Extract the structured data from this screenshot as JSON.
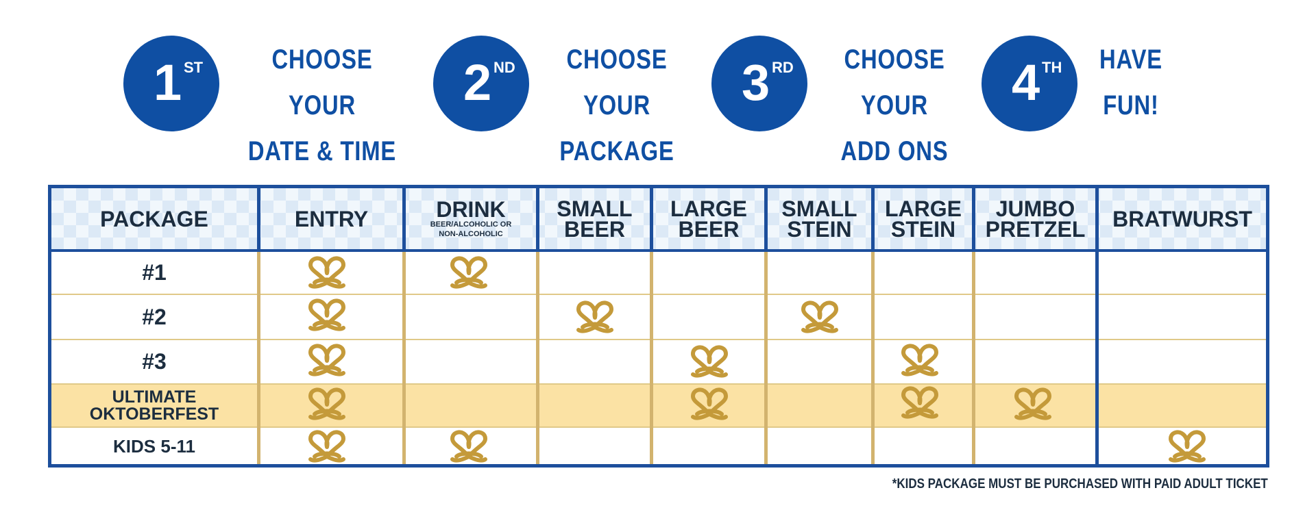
{
  "steps": [
    {
      "number": "1",
      "suffix": "ST",
      "line1": "CHOOSE YOUR",
      "line2": "DATE & TIME"
    },
    {
      "number": "2",
      "suffix": "ND",
      "line1": "CHOOSE YOUR",
      "line2": "PACKAGE"
    },
    {
      "number": "3",
      "suffix": "RD",
      "line1": "CHOOSE YOUR",
      "line2": "ADD ONS"
    },
    {
      "number": "4",
      "suffix": "TH",
      "line1": "HAVE",
      "line2": "FUN!"
    }
  ],
  "table": {
    "headers": {
      "package": "PACKAGE",
      "entry": "ENTRY",
      "drink": "DRINK",
      "drink_sub1": "BEER/ALCOHOLIC OR",
      "drink_sub2": "NON-ALCOHOLIC",
      "small_beer_1": "SMALL",
      "small_beer_2": "BEER",
      "large_beer_1": "LARGE",
      "large_beer_2": "BEER",
      "small_stein_1": "SMALL",
      "small_stein_2": "STEIN",
      "large_stein_1": "LARGE",
      "large_stein_2": "STEIN",
      "jumbo_pretzel_1": "JUMBO",
      "jumbo_pretzel_2": "PRETZEL",
      "bratwurst": "BRATWURST"
    },
    "rows": [
      {
        "label": "#1",
        "included": [
          "entry",
          "drink"
        ]
      },
      {
        "label": "#2",
        "included": [
          "entry",
          "small_beer",
          "small_stein"
        ]
      },
      {
        "label": "#3",
        "included": [
          "entry",
          "large_beer",
          "large_stein"
        ]
      },
      {
        "label_1": "ULTIMATE",
        "label_2": "OKTOBERFEST",
        "included": [
          "entry",
          "large_beer",
          "large_stein",
          "jumbo_pretzel"
        ],
        "highlighted": true
      },
      {
        "label": "KIDS 5-11",
        "included": [
          "entry",
          "drink",
          "bratwurst"
        ]
      }
    ],
    "footnote": "*KIDS PACKAGE MUST BE PURCHASED WITH PAID ADULT TICKET"
  },
  "colors": {
    "brand_blue": "#0f4fa3",
    "gold": "#c49a3a",
    "highlight": "#fbe2a4"
  },
  "icons": {
    "included_marker": "pretzel-icon"
  }
}
